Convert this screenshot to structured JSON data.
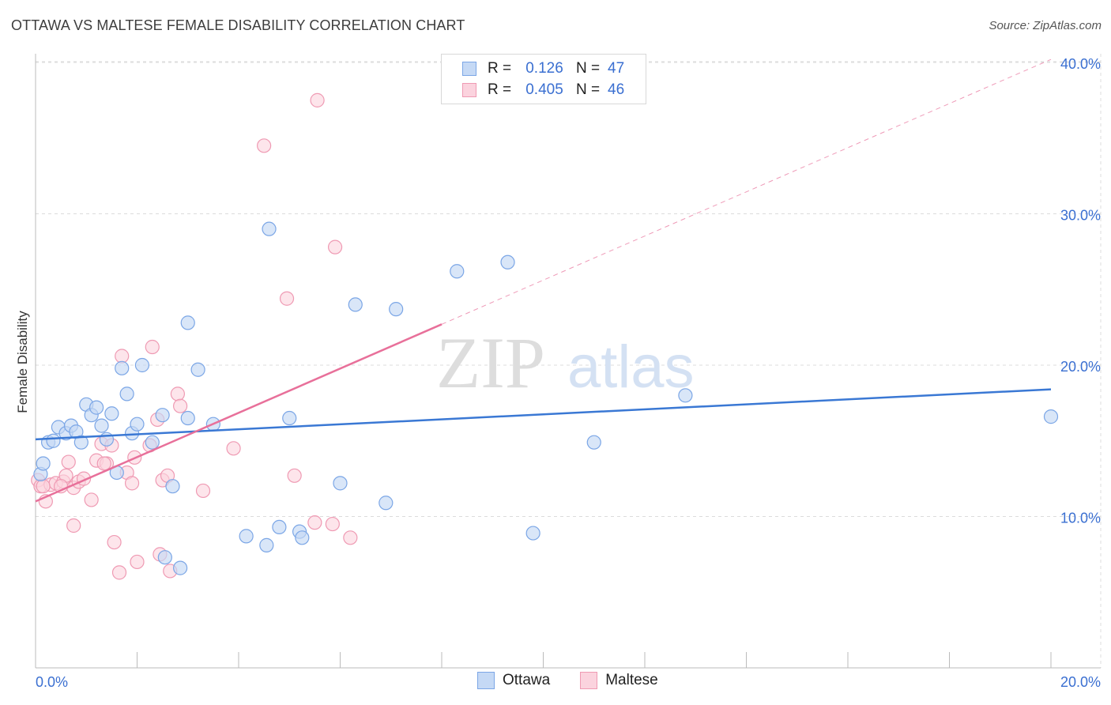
{
  "title": "OTTAWA VS MALTESE FEMALE DISABILITY CORRELATION CHART",
  "source": "Source: ZipAtlas.com",
  "watermark": {
    "zip": "ZIP",
    "atlas": "atlas"
  },
  "legend": {
    "r_label": "R =",
    "n_label": "N =",
    "rows": [
      {
        "name": "Ottawa",
        "r": "0.126",
        "n": "47",
        "fill": "#c5d9f5",
        "stroke": "#7ba6e6"
      },
      {
        "name": "Maltese",
        "r": "0.405",
        "n": "46",
        "fill": "#fbd3de",
        "stroke": "#ef9ab3"
      }
    ]
  },
  "chart_data": {
    "type": "scatter",
    "title": "OTTAWA VS MALTESE FEMALE DISABILITY CORRELATION CHART",
    "xlabel": "",
    "ylabel": "Female Disability",
    "xlim": [
      0,
      20
    ],
    "ylim": [
      0,
      42
    ],
    "x_tick_labels": [
      "0.0%",
      "20.0%"
    ],
    "y_tick_labels": [
      "10.0%",
      "20.0%",
      "30.0%",
      "40.0%"
    ],
    "y_ticks": [
      10,
      20,
      30,
      40
    ],
    "grid": true,
    "colors": {
      "ottawa": "#3a78d4",
      "maltese": "#e8709a",
      "axis_label": "#3a6fd1"
    },
    "series": [
      {
        "name": "Ottawa",
        "trend": {
          "x": [
            0,
            20
          ],
          "y": [
            15.1,
            18.4
          ],
          "dashed_extension": false
        },
        "points": [
          [
            0.1,
            12.8
          ],
          [
            0.15,
            13.5
          ],
          [
            0.25,
            14.9
          ],
          [
            0.35,
            15.0
          ],
          [
            0.45,
            15.9
          ],
          [
            0.6,
            15.5
          ],
          [
            0.7,
            16.0
          ],
          [
            0.8,
            15.6
          ],
          [
            0.9,
            14.9
          ],
          [
            1.0,
            17.4
          ],
          [
            1.1,
            16.7
          ],
          [
            1.2,
            17.2
          ],
          [
            1.3,
            16.0
          ],
          [
            1.5,
            16.8
          ],
          [
            1.4,
            15.1
          ],
          [
            1.6,
            12.9
          ],
          [
            1.7,
            19.8
          ],
          [
            1.8,
            18.1
          ],
          [
            1.9,
            15.5
          ],
          [
            2.0,
            16.1
          ],
          [
            2.1,
            20.0
          ],
          [
            2.3,
            14.9
          ],
          [
            2.5,
            16.7
          ],
          [
            2.7,
            12.0
          ],
          [
            2.85,
            6.6
          ],
          [
            2.55,
            7.3
          ],
          [
            3.0,
            22.8
          ],
          [
            3.2,
            19.7
          ],
          [
            3.5,
            16.1
          ],
          [
            3.0,
            16.5
          ],
          [
            4.15,
            8.7
          ],
          [
            4.55,
            8.1
          ],
          [
            4.6,
            29.0
          ],
          [
            4.8,
            9.3
          ],
          [
            5.0,
            16.5
          ],
          [
            5.2,
            9.0
          ],
          [
            5.25,
            8.6
          ],
          [
            6.0,
            12.2
          ],
          [
            6.3,
            24.0
          ],
          [
            6.9,
            10.9
          ],
          [
            7.1,
            23.7
          ],
          [
            8.3,
            26.2
          ],
          [
            9.3,
            26.8
          ],
          [
            9.8,
            8.9
          ],
          [
            11.0,
            14.9
          ],
          [
            12.8,
            18.0
          ],
          [
            20.0,
            16.6
          ]
        ]
      },
      {
        "name": "Maltese",
        "trend": {
          "x": [
            0,
            8.0
          ],
          "y": [
            11.0,
            22.7
          ],
          "dashed_to": [
            20,
            40.2
          ]
        },
        "points": [
          [
            0.05,
            12.4
          ],
          [
            0.1,
            12.0
          ],
          [
            0.2,
            11.0
          ],
          [
            0.3,
            12.1
          ],
          [
            0.4,
            12.2
          ],
          [
            0.55,
            12.3
          ],
          [
            0.6,
            12.7
          ],
          [
            0.65,
            13.6
          ],
          [
            0.75,
            11.9
          ],
          [
            0.85,
            12.3
          ],
          [
            0.95,
            12.5
          ],
          [
            0.75,
            9.4
          ],
          [
            1.1,
            11.1
          ],
          [
            1.2,
            13.7
          ],
          [
            1.3,
            14.8
          ],
          [
            1.4,
            13.5
          ],
          [
            1.5,
            14.7
          ],
          [
            1.55,
            8.3
          ],
          [
            1.65,
            6.3
          ],
          [
            1.7,
            20.6
          ],
          [
            1.8,
            12.9
          ],
          [
            1.9,
            12.2
          ],
          [
            1.95,
            13.9
          ],
          [
            2.0,
            7.0
          ],
          [
            2.3,
            21.2
          ],
          [
            2.25,
            14.7
          ],
          [
            2.4,
            16.4
          ],
          [
            2.45,
            7.5
          ],
          [
            2.5,
            12.4
          ],
          [
            2.6,
            12.7
          ],
          [
            2.65,
            6.4
          ],
          [
            2.8,
            18.1
          ],
          [
            2.85,
            17.3
          ],
          [
            3.3,
            11.7
          ],
          [
            3.9,
            14.5
          ],
          [
            4.5,
            34.5
          ],
          [
            4.95,
            24.4
          ],
          [
            5.1,
            12.7
          ],
          [
            5.5,
            9.6
          ],
          [
            5.55,
            37.5
          ],
          [
            5.85,
            9.5
          ],
          [
            5.9,
            27.8
          ],
          [
            6.2,
            8.6
          ],
          [
            1.35,
            13.5
          ],
          [
            0.5,
            12.0
          ],
          [
            0.15,
            12.0
          ]
        ]
      }
    ]
  }
}
